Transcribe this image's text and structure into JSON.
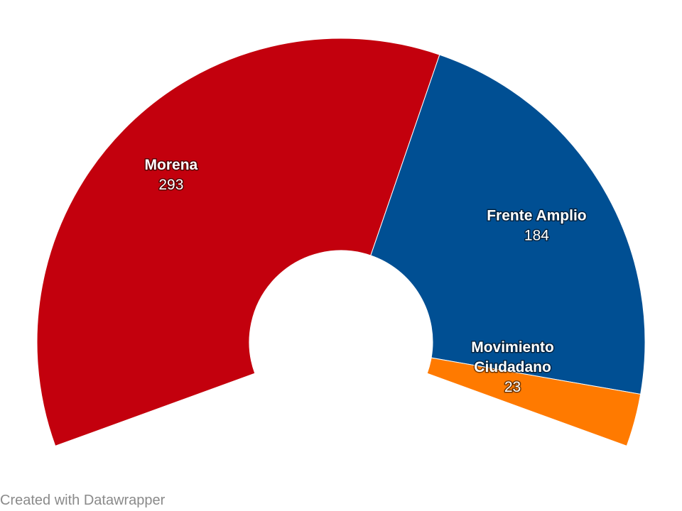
{
  "chart_data": {
    "type": "pie",
    "style": "half-donut",
    "slices": [
      {
        "name_lines": [
          "Morena"
        ],
        "value": 293,
        "color": "#c3000d"
      },
      {
        "name_lines": [
          "Frente Amplio"
        ],
        "value": 184,
        "color": "#004f93"
      },
      {
        "name_lines": [
          "Movimiento",
          "Ciudadano"
        ],
        "value": 23,
        "color": "#ff7a00"
      }
    ]
  },
  "footer": {
    "credit": "Created with Datawrapper"
  }
}
